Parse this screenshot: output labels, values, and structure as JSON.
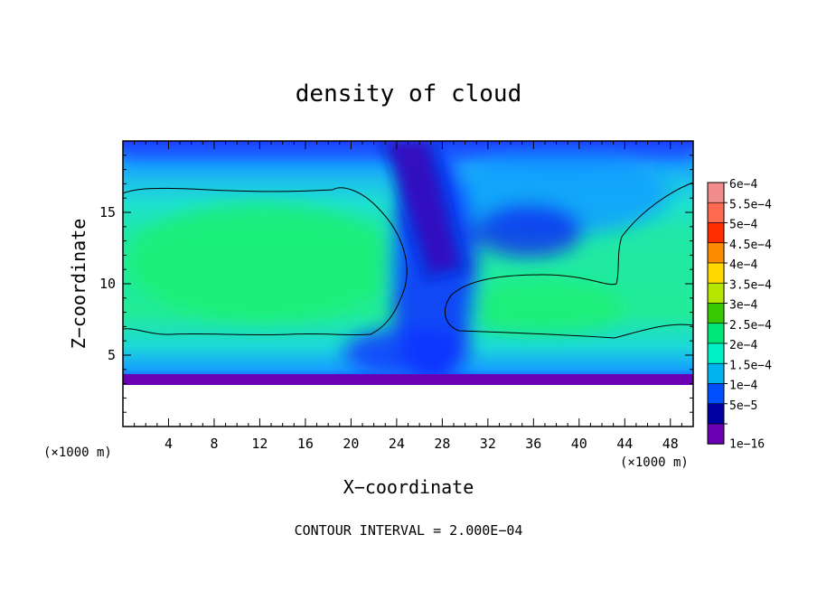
{
  "chart_data": {
    "type": "heatmap",
    "title": "density of cloud",
    "xlabel": "X−coordinate",
    "ylabel": "Z−coordinate",
    "x_unit": "(×1000 m)",
    "z_unit": "(×1000 m)",
    "xlim": [
      0,
      50
    ],
    "ylim": [
      0,
      20
    ],
    "x_ticks": [
      4,
      8,
      12,
      16,
      20,
      24,
      28,
      32,
      36,
      40,
      44,
      48
    ],
    "x_tick_labels": [
      "4",
      "8",
      "12",
      "16",
      "20",
      "24",
      "28",
      "32",
      "36",
      "40",
      "44",
      "48"
    ],
    "y_ticks": [
      5,
      10,
      15
    ],
    "y_tick_labels": [
      "5",
      "10",
      "15"
    ],
    "contour_note": "CONTOUR INTERVAL = 2.000E−04",
    "colorbar": {
      "labels": [
        "6e−4",
        "5.5e−4",
        "5e−4",
        "4.5e−4",
        "4e−4",
        "3.5e−4",
        "3e−4",
        "2.5e−4",
        "2e−4",
        "1.5e−4",
        "1e−4",
        "5e−5",
        "1e−16"
      ],
      "levels": [
        0.0006,
        0.00055,
        0.0005,
        0.00045,
        0.0004,
        0.00035,
        0.0003,
        0.00025,
        0.0002,
        0.00015,
        0.0001,
        5e-05,
        0
      ],
      "colors": [
        "#f08c8c",
        "#ff6a50",
        "#ff2d00",
        "#ff8c00",
        "#ffd800",
        "#b4e600",
        "#38c800",
        "#00e678",
        "#00f0c8",
        "#00b4f0",
        "#0050ff",
        "#0000a0",
        "#6a00b4"
      ]
    },
    "field_summary": {
      "cloud_base_z": 3,
      "max_value": 0.00026,
      "contour_level": 0.0002
    }
  }
}
